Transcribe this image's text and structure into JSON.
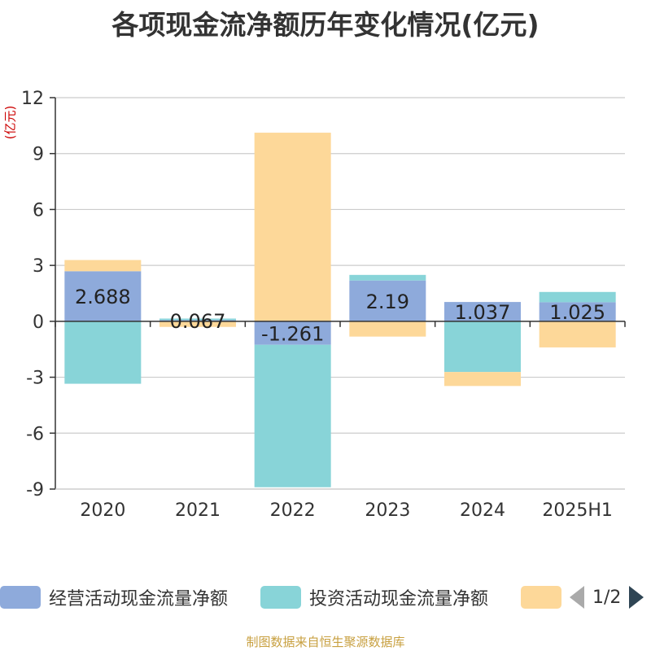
{
  "title": "各项现金流净额历年变化情况(亿元)",
  "unit_label": "(亿元)",
  "source": "制图数据来自恒生聚源数据库",
  "legend": {
    "page_indicator": "1/2"
  },
  "chart_data": {
    "type": "bar",
    "stacked": true,
    "categories": [
      "2020",
      "2021",
      "2022",
      "2023",
      "2024",
      "2025H1"
    ],
    "ylim": [
      -9,
      12
    ],
    "yticks": [
      -9,
      -6,
      -3,
      0,
      3,
      6,
      9,
      12
    ],
    "grid": true,
    "legend_position": "bottom",
    "series": [
      {
        "name": "经营活动现金流量净额",
        "color": "#8eaadb",
        "values": [
          2.688,
          0.067,
          -1.261,
          2.19,
          1.037,
          1.025
        ],
        "labels": [
          "2.688",
          "0.067",
          "-1.261",
          "2.19",
          "1.037",
          "1.025"
        ]
      },
      {
        "name": "投资活动现金流量净额",
        "color": "#88d4d8",
        "values": [
          -3.35,
          0.08,
          -7.64,
          0.3,
          -2.72,
          0.55
        ]
      },
      {
        "name": "",
        "color": "#fdd899",
        "values": [
          0.6,
          -0.3,
          10.12,
          -0.82,
          -0.75,
          -1.4
        ]
      }
    ]
  }
}
